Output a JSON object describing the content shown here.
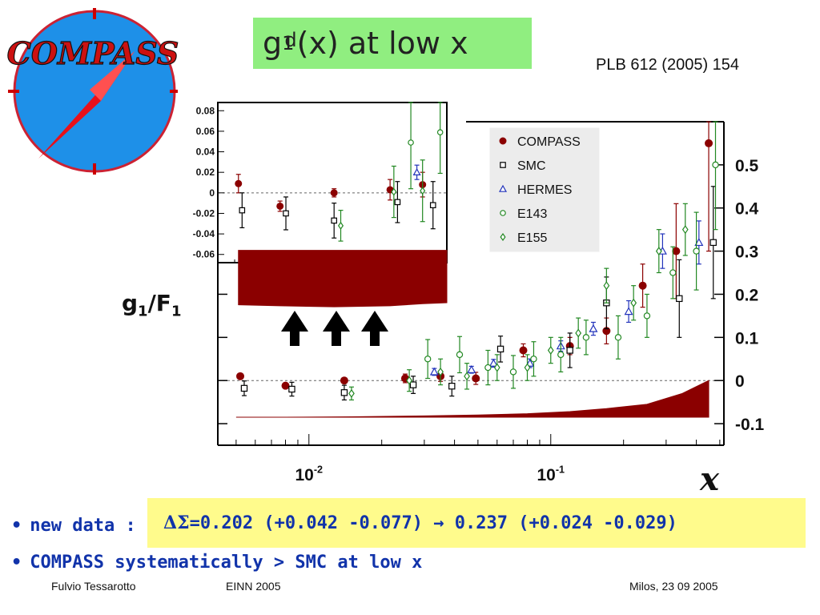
{
  "slide": {
    "title_base": "g",
    "title_sub": "1",
    "title_sup": "d",
    "title_rest": "(x) at low x",
    "reference": "PLB 612 (2005) 154",
    "logo_text": "COMPASS",
    "ylabel_main": "g",
    "ylabel_sub": "1",
    "ylabel_slash": "/F",
    "ylabel_sub2": "1",
    "bullet1_prefix": "new data :",
    "bullet1_symbol": "ΔΣ",
    "bullet1_value": " =0.202 (+0.042 -0.077) →  0.237 (+0.024 -0.029)",
    "bullet2": "COMPASS systematically > SMC at low x",
    "footer_author": "Fulvio Tessarotto",
    "footer_event": "EINN 2005",
    "footer_place_date": "Milos,   23 09 2005"
  },
  "chart_data": [
    {
      "type": "scatter",
      "title": "",
      "xlabel": "x",
      "ylabel": "g1/F1",
      "xscale": "log",
      "xlim": [
        0.0042,
        0.52
      ],
      "ylim": [
        -0.15,
        0.6
      ],
      "xticks": [
        "10^-2",
        "10^-1"
      ],
      "yticks": [
        "-0.1",
        "0",
        "0.1",
        "0.2",
        "0.3",
        "0.4",
        "0.5"
      ],
      "legend_position": "top-right",
      "legend": [
        "COMPASS",
        "SMC",
        "HERMES",
        "E143",
        "E155"
      ],
      "series": [
        {
          "name": "COMPASS",
          "color": "#8b0000",
          "marker": "filled-circle",
          "points": [
            [
              0.0052,
              0.01,
              0.006
            ],
            [
              0.008,
              -0.012,
              0.004
            ],
            [
              0.014,
              0.0,
              0.004
            ],
            [
              0.025,
              0.005,
              0.01
            ],
            [
              0.035,
              0.01,
              0.012
            ],
            [
              0.049,
              0.005,
              0.014
            ],
            [
              0.077,
              0.07,
              0.015
            ],
            [
              0.12,
              0.08,
              0.02
            ],
            [
              0.17,
              0.115,
              0.03
            ],
            [
              0.24,
              0.22,
              0.05
            ],
            [
              0.33,
              0.3,
              0.11
            ],
            [
              0.45,
              0.55,
              0.25
            ]
          ]
        },
        {
          "name": "SMC",
          "color": "#000000",
          "marker": "open-square",
          "points": [
            [
              0.0054,
              -0.018,
              0.017
            ],
            [
              0.0085,
              -0.02,
              0.016
            ],
            [
              0.014,
              -0.028,
              0.017
            ],
            [
              0.027,
              -0.01,
              0.02
            ],
            [
              0.039,
              -0.013,
              0.023
            ],
            [
              0.062,
              0.073,
              0.03
            ],
            [
              0.12,
              0.07,
              0.04
            ],
            [
              0.17,
              0.18,
              0.06
            ],
            [
              0.34,
              0.19,
              0.09
            ],
            [
              0.47,
              0.32,
              0.13
            ]
          ]
        },
        {
          "name": "HERMES",
          "color": "#2233bb",
          "marker": "open-triangle",
          "points": [
            [
              0.033,
              0.02,
              0.008
            ],
            [
              0.047,
              0.025,
              0.008
            ],
            [
              0.058,
              0.04,
              0.009
            ],
            [
              0.082,
              0.04,
              0.01
            ],
            [
              0.11,
              0.08,
              0.012
            ],
            [
              0.15,
              0.12,
              0.015
            ],
            [
              0.21,
              0.16,
              0.025
            ],
            [
              0.29,
              0.3,
              0.04
            ],
            [
              0.41,
              0.32,
              0.05
            ]
          ]
        },
        {
          "name": "E143",
          "color": "#228822",
          "marker": "open-circle",
          "points": [
            [
              0.031,
              0.05,
              0.045
            ],
            [
              0.042,
              0.06,
              0.042
            ],
            [
              0.055,
              0.03,
              0.04
            ],
            [
              0.07,
              0.02,
              0.038
            ],
            [
              0.085,
              0.05,
              0.04
            ],
            [
              0.11,
              0.06,
              0.04
            ],
            [
              0.14,
              0.1,
              0.04
            ],
            [
              0.19,
              0.1,
              0.05
            ],
            [
              0.25,
              0.15,
              0.05
            ],
            [
              0.32,
              0.25,
              0.06
            ],
            [
              0.4,
              0.3,
              0.09
            ],
            [
              0.48,
              0.5,
              0.15
            ]
          ]
        },
        {
          "name": "E155",
          "color": "#228822",
          "marker": "open-diamond",
          "points": [
            [
              0.015,
              -0.03,
              0.015
            ],
            [
              0.026,
              0.0,
              0.025
            ],
            [
              0.035,
              0.02,
              0.03
            ],
            [
              0.045,
              0.01,
              0.03
            ],
            [
              0.06,
              0.03,
              0.03
            ],
            [
              0.08,
              0.03,
              0.03
            ],
            [
              0.1,
              0.07,
              0.03
            ],
            [
              0.13,
              0.11,
              0.035
            ],
            [
              0.17,
              0.22,
              0.04
            ],
            [
              0.22,
              0.18,
              0.04
            ],
            [
              0.28,
              0.3,
              0.05
            ],
            [
              0.36,
              0.35,
              0.06
            ]
          ]
        }
      ],
      "systematic_band": {
        "color": "#8b0000",
        "points": [
          [
            0.005,
            0.0
          ],
          [
            0.008,
            0.0
          ],
          [
            0.015,
            0.001
          ],
          [
            0.03,
            0.003
          ],
          [
            0.05,
            0.005
          ],
          [
            0.08,
            0.008
          ],
          [
            0.12,
            0.013
          ],
          [
            0.17,
            0.02
          ],
          [
            0.25,
            0.03
          ],
          [
            0.35,
            0.055
          ],
          [
            0.45,
            0.085
          ]
        ],
        "baseline": -0.085
      }
    },
    {
      "type": "scatter",
      "title": "",
      "xlabel": "x",
      "ylabel": "",
      "xscale": "log",
      "xlim": [
        0.0042,
        0.045
      ],
      "ylim": [
        -0.068,
        0.088
      ],
      "xticks": [
        "10^-2"
      ],
      "yticks": [
        "-0.06",
        "-0.04",
        "-0.02",
        "0",
        "0.02",
        "0.04",
        "0.06",
        "0.08"
      ],
      "series": [
        {
          "name": "COMPASS",
          "color": "#8b0000",
          "marker": "filled-circle",
          "points": [
            [
              0.0052,
              0.009,
              0.009
            ],
            [
              0.008,
              -0.013,
              0.005
            ],
            [
              0.014,
              0.0,
              0.004
            ],
            [
              0.025,
              0.003,
              0.01
            ],
            [
              0.035,
              0.008,
              0.012
            ]
          ]
        },
        {
          "name": "SMC",
          "color": "#000000",
          "marker": "open-square",
          "points": [
            [
              0.0054,
              -0.017,
              0.017
            ],
            [
              0.0085,
              -0.02,
              0.016
            ],
            [
              0.014,
              -0.027,
              0.017
            ],
            [
              0.027,
              -0.009,
              0.02
            ],
            [
              0.039,
              -0.012,
              0.023
            ]
          ]
        },
        {
          "name": "HERMES",
          "color": "#2233bb",
          "marker": "open-triangle",
          "points": [
            [
              0.033,
              0.02,
              0.007
            ]
          ]
        },
        {
          "name": "E143",
          "color": "#228822",
          "marker": "open-circle",
          "points": [
            [
              0.031,
              0.049,
              0.045
            ],
            [
              0.042,
              0.059,
              0.04
            ]
          ]
        },
        {
          "name": "E155",
          "color": "#228822",
          "marker": "open-diamond",
          "points": [
            [
              0.015,
              -0.032,
              0.015
            ],
            [
              0.026,
              0.001,
              0.025
            ],
            [
              0.035,
              0.002,
              0.03
            ]
          ]
        }
      ],
      "systematic_band": {
        "color": "#8b0000",
        "points": [
          [
            0.0052,
            -0.053
          ],
          [
            0.008,
            -0.054
          ],
          [
            0.014,
            -0.055
          ],
          [
            0.025,
            -0.054
          ],
          [
            0.035,
            -0.052
          ],
          [
            0.045,
            -0.051
          ]
        ],
        "baseline": -0.056
      }
    }
  ]
}
